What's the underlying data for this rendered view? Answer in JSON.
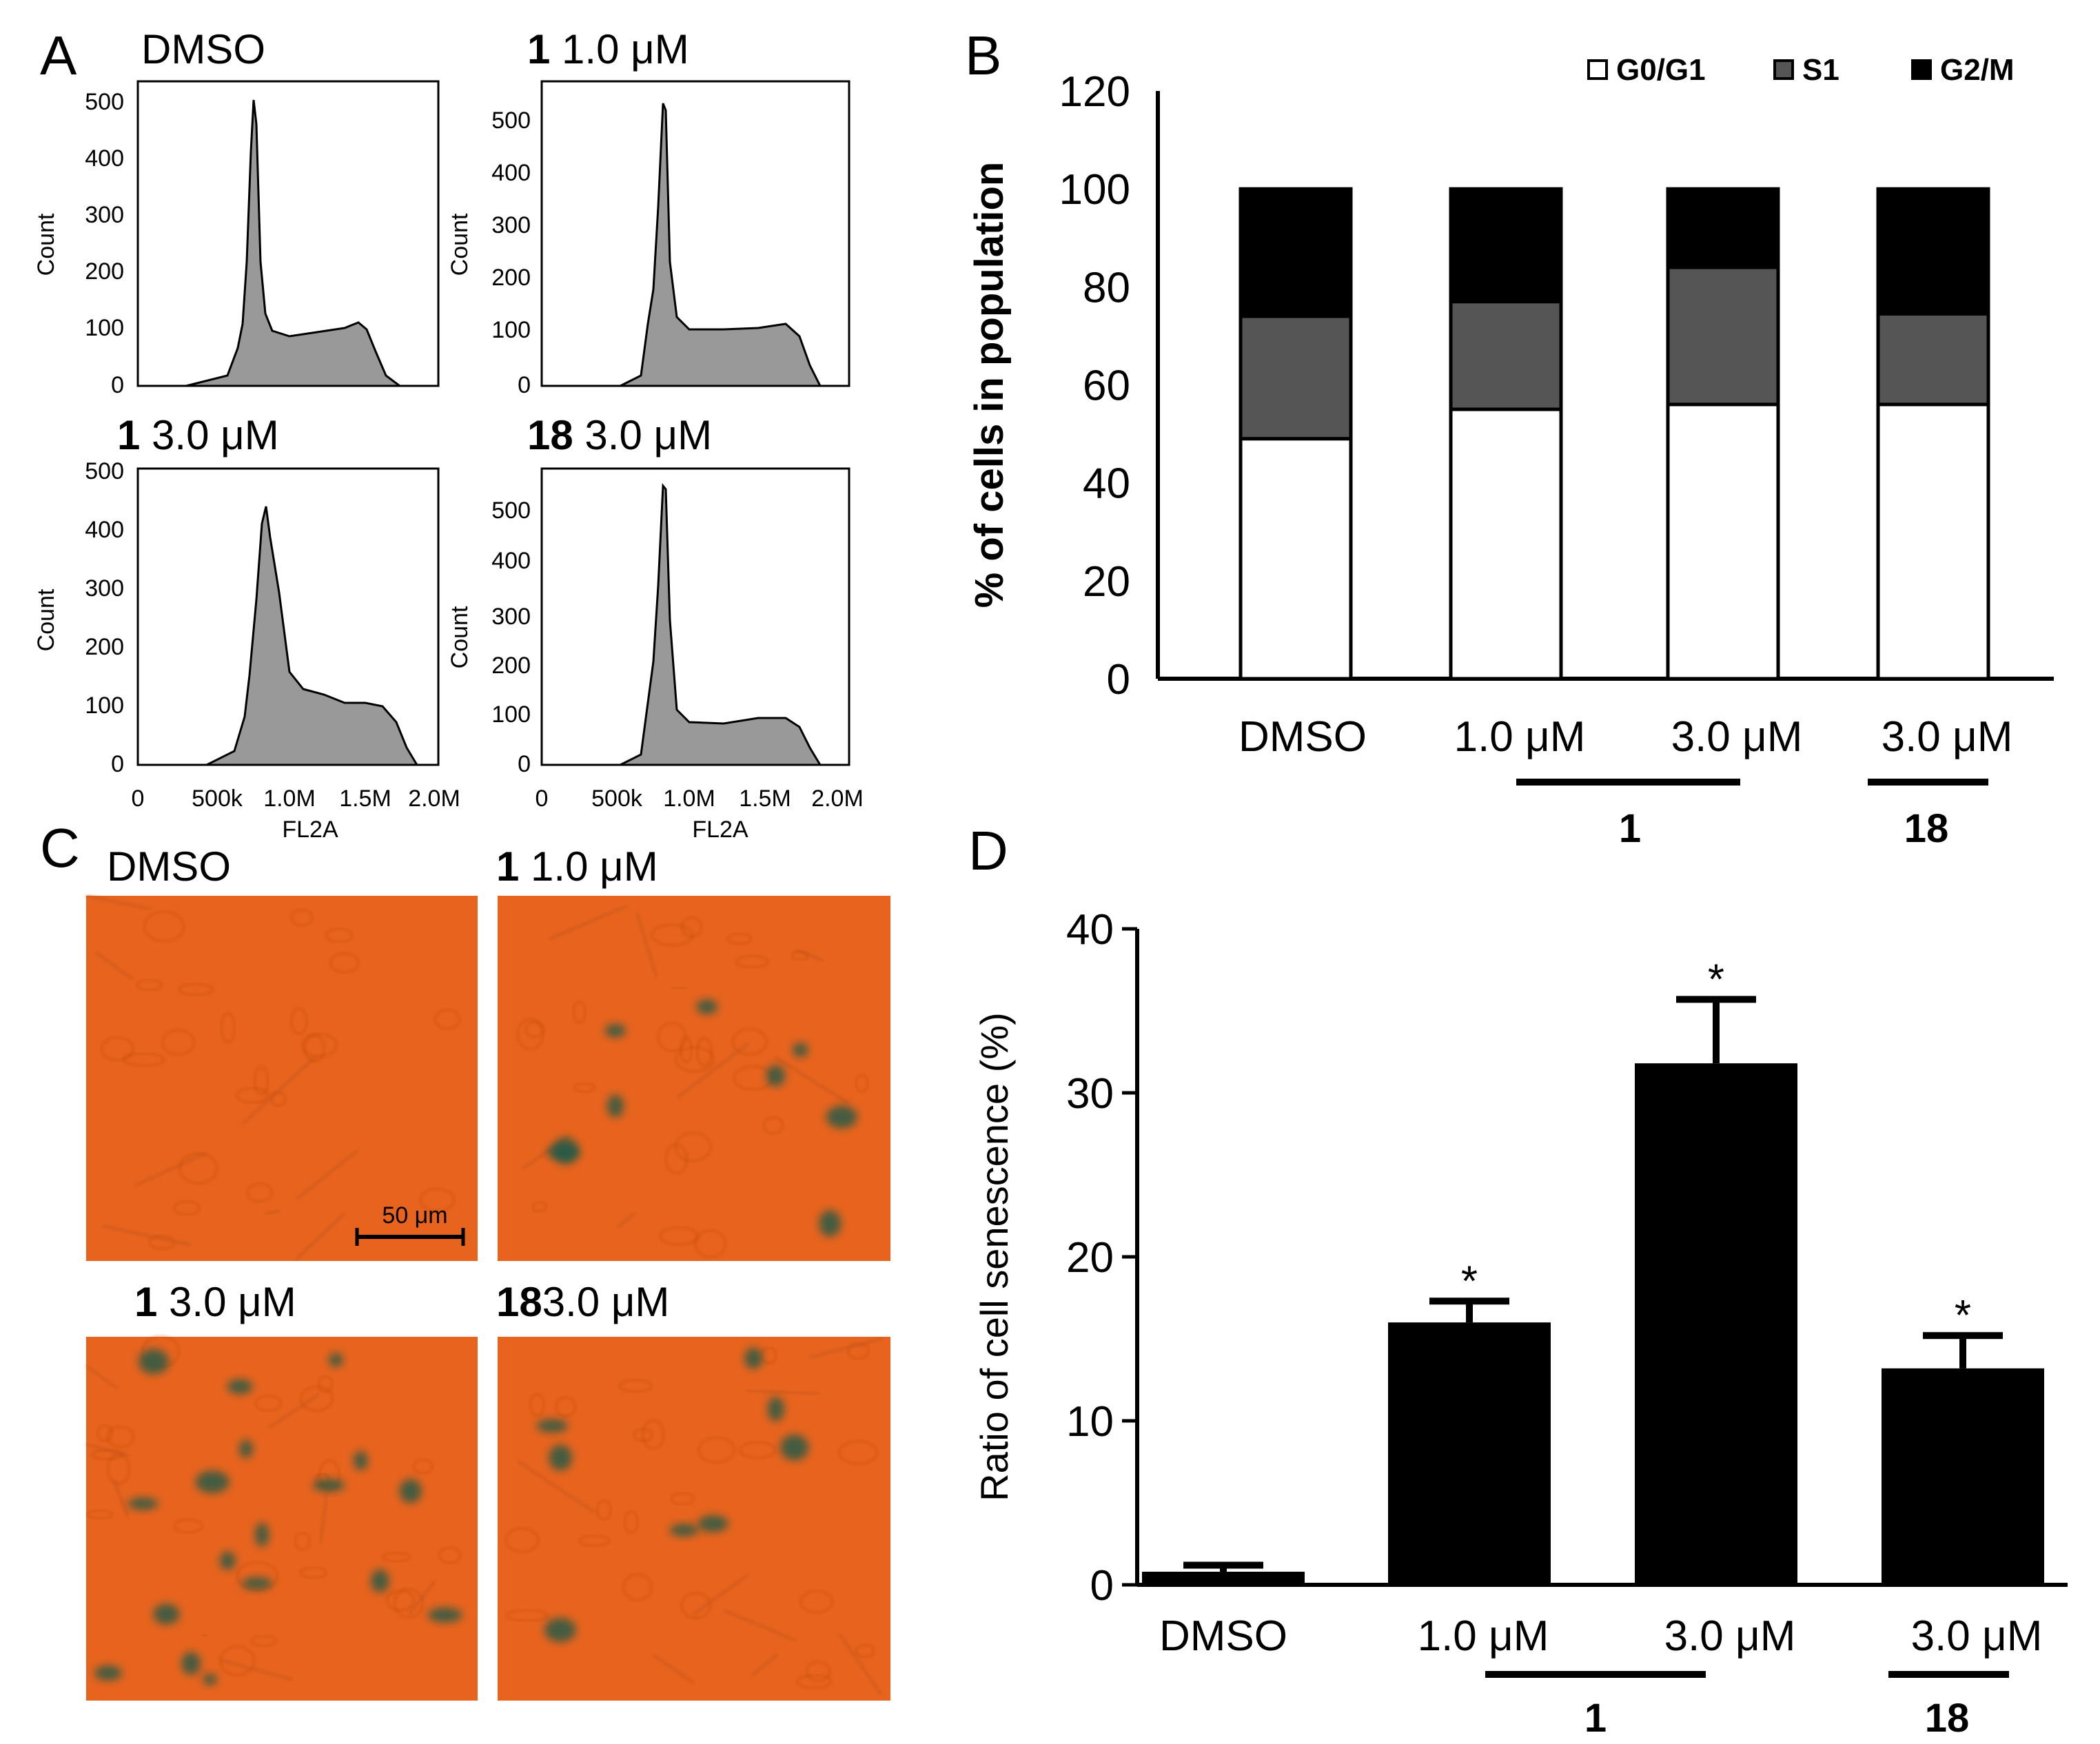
{
  "panels": {
    "A": {
      "letter": "A",
      "xlabel": "FL2A",
      "ylabel": "Count",
      "xticks": [
        "0",
        "500k",
        "1.0M",
        "1.5M",
        "2.0M"
      ],
      "subplots": [
        {
          "compound": "",
          "conc": "DMSO",
          "yticks": [
            "0",
            "100",
            "200",
            "300",
            "400",
            "500"
          ]
        },
        {
          "compound": "1",
          "conc": "1.0 μM",
          "yticks": [
            "0",
            "100",
            "200",
            "300",
            "400",
            "500"
          ]
        },
        {
          "compound": "1",
          "conc": "3.0 μM",
          "yticks": [
            "0",
            "100",
            "200",
            "300",
            "400",
            "500"
          ]
        },
        {
          "compound": "18",
          "conc": "3.0 μM",
          "yticks": [
            "0",
            "100",
            "200",
            "300",
            "400",
            "500"
          ]
        }
      ]
    },
    "B": {
      "letter": "B",
      "group_labels": [
        "1",
        "18"
      ]
    },
    "C": {
      "letter": "C",
      "images": [
        {
          "compound": "",
          "conc": "DMSO"
        },
        {
          "compound": "1",
          "conc": "1.0 μM"
        },
        {
          "compound": "1",
          "conc": "3.0 μM"
        },
        {
          "compound": "18",
          "conc": "3.0 μM"
        }
      ],
      "scale_bar": "50 μm",
      "stain_color": "#e8641e",
      "blue_stain_color": "#1d5a4a"
    },
    "D": {
      "letter": "D",
      "group_labels": [
        "1",
        "18"
      ]
    }
  },
  "chart_data": [
    {
      "id": "B",
      "type": "bar",
      "stacked": true,
      "categories": [
        "DMSO",
        "1.0 μM",
        "3.0 μM",
        "3.0 μM"
      ],
      "series": [
        {
          "name": "G0/G1",
          "values": [
            49,
            55,
            56,
            56
          ],
          "color": "#ffffff"
        },
        {
          "name": "S1",
          "values": [
            25,
            22,
            28,
            18.5
          ],
          "color": "#555555"
        },
        {
          "name": "G2/M",
          "values": [
            26,
            23,
            16,
            25.5
          ],
          "color": "#000000"
        }
      ],
      "ylabel": "% of cells in population",
      "ylim": [
        0,
        120
      ],
      "yticks": [
        "0",
        "20",
        "40",
        "60",
        "80",
        "100",
        "120"
      ],
      "legend": "top-right"
    },
    {
      "id": "D",
      "type": "bar",
      "categories": [
        "DMSO",
        "1.0 μM",
        "3.0 μM",
        "3.0 μM"
      ],
      "values": [
        0.8,
        16,
        31.8,
        13.2
      ],
      "errors": [
        0.4,
        1.3,
        3.9,
        2.0
      ],
      "significance": [
        "",
        "*",
        "*",
        "*"
      ],
      "ylabel": "Ratio of cell senescence (%)",
      "ylim": [
        0,
        40
      ],
      "yticks": [
        "0",
        "10",
        "20",
        "30",
        "40"
      ]
    }
  ]
}
